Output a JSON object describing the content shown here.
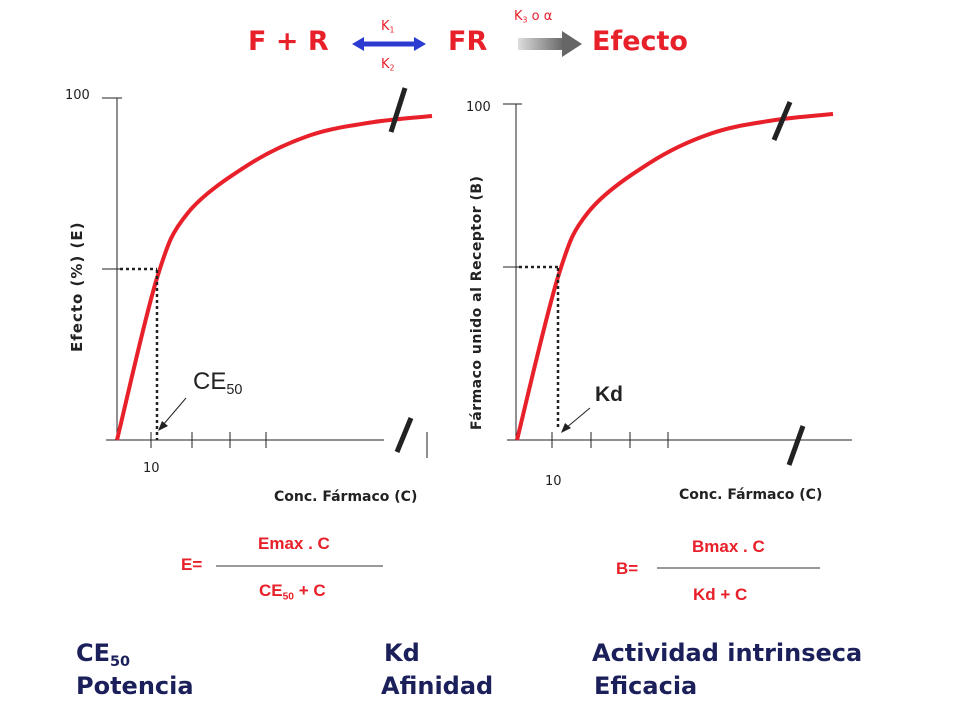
{
  "reaction": {
    "left": "F + R",
    "middle": "FR",
    "right": "Efecto",
    "k1": "K",
    "k1_sub": "1",
    "k2": "K",
    "k2_sub": "2",
    "k3": "K",
    "k3_sub": "3",
    "k3_suffix": " o α"
  },
  "colors": {
    "curve": "#e8202a",
    "red_text": "#e8202a",
    "navy_text": "#1b1f5a",
    "arrow_blue": "#2b3bd1",
    "arrow_gray": "#777777"
  },
  "chart_data": [
    {
      "type": "line",
      "series": [
        {
          "x": [
            0,
            10,
            20,
            40,
            60,
            80,
            100
          ],
          "y": [
            0,
            50,
            70,
            85,
            94,
            98,
            100
          ]
        }
      ],
      "ylabel": "Efecto (%) (E)",
      "xlabel": "Conc. Fármaco (C)",
      "y_ticks": [
        "100"
      ],
      "x_ticks": [
        "10"
      ],
      "ylim": [
        0,
        100
      ],
      "marker_label": "CE",
      "marker_label_sub": "50",
      "axis_breaks": "diagonal slashes on curve end and x-axis",
      "formula": {
        "lhs": "E=",
        "numerator": "Emax . C",
        "denominator_main": "CE",
        "denominator_sub": "50",
        "denominator_rest": " + C"
      }
    },
    {
      "type": "line",
      "series": [
        {
          "x": [
            0,
            10,
            20,
            40,
            60,
            80,
            100
          ],
          "y": [
            0,
            50,
            70,
            85,
            94,
            98,
            100
          ]
        }
      ],
      "ylabel": "Fármaco unido al Receptor (B)",
      "xlabel": "Conc. Fármaco (C)",
      "y_ticks": [
        "100"
      ],
      "x_ticks": [
        "10"
      ],
      "ylim": [
        0,
        100
      ],
      "marker_label": "Kd",
      "axis_breaks": "diagonal slashes on curve end and x-axis",
      "formula": {
        "lhs": "B=",
        "numerator": "Bmax . C",
        "denominator": "Kd + C"
      }
    }
  ],
  "summary": {
    "col1_title": "CE",
    "col1_title_sub": "50",
    "col1_sub": "Potencia",
    "col2_title": "Kd",
    "col2_sub": "Afinidad",
    "col3_title": "Actividad intrinseca",
    "col3_sub": "Eficacia"
  }
}
